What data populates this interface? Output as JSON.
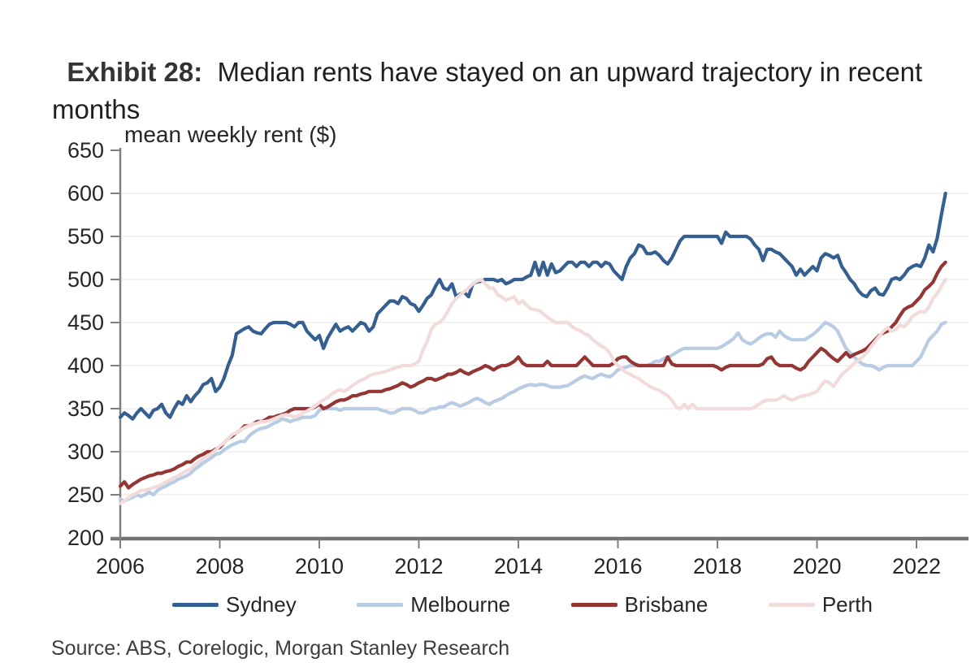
{
  "title": {
    "exhibit": "Exhibit 28:",
    "rest": "  Median rents have stayed on an upward trajectory in recent months"
  },
  "source": "Source: ABS, Corelogic, Morgan Stanley Research",
  "colors": {
    "axis_line": "#808080",
    "x_axis_line": "#737373",
    "gridline": "#eeeeee",
    "tick_text": "#262626",
    "title_text": "#1f1f1f"
  },
  "chart_data": {
    "type": "line",
    "title": "mean weekly rent ($)",
    "ylabel": "mean weekly rent ($)",
    "xlabel": "",
    "ylim": [
      200,
      650
    ],
    "ytick_step": 50,
    "yticks": [
      200,
      250,
      300,
      350,
      400,
      450,
      500,
      550,
      600,
      650
    ],
    "gridline_values": [
      250,
      300,
      350,
      400,
      450,
      500,
      550,
      600
    ],
    "xlim": [
      2006,
      2022.95
    ],
    "xticks": [
      2006,
      2008,
      2010,
      2012,
      2014,
      2016,
      2018,
      2020,
      2022
    ],
    "x_start": 2006.0,
    "x_step_years": 0.0833333,
    "grid": "horizontal",
    "legend_position": "bottom",
    "series": [
      {
        "name": "Sydney",
        "color": "#365F91",
        "values": [
          340,
          345,
          342,
          338,
          345,
          350,
          345,
          340,
          348,
          350,
          355,
          345,
          340,
          350,
          358,
          355,
          365,
          358,
          365,
          370,
          378,
          380,
          385,
          370,
          375,
          385,
          400,
          412,
          437,
          440,
          443,
          445,
          440,
          438,
          437,
          443,
          448,
          450,
          450,
          450,
          450,
          448,
          445,
          450,
          450,
          440,
          435,
          430,
          435,
          420,
          432,
          440,
          448,
          440,
          443,
          445,
          440,
          445,
          450,
          448,
          440,
          445,
          460,
          465,
          470,
          475,
          475,
          472,
          480,
          478,
          472,
          470,
          463,
          470,
          478,
          482,
          492,
          500,
          490,
          488,
          495,
          480,
          483,
          485,
          480,
          495,
          497,
          498,
          500,
          500,
          500,
          498,
          500,
          495,
          497,
          500,
          500,
          500,
          503,
          505,
          520,
          505,
          520,
          505,
          518,
          508,
          510,
          515,
          520,
          520,
          515,
          520,
          520,
          515,
          520,
          520,
          515,
          520,
          518,
          510,
          505,
          500,
          515,
          525,
          530,
          540,
          538,
          530,
          530,
          532,
          528,
          522,
          518,
          525,
          535,
          545,
          550,
          550,
          550,
          550,
          550,
          550,
          550,
          550,
          550,
          542,
          555,
          550,
          550,
          550,
          550,
          550,
          547,
          540,
          535,
          522,
          535,
          535,
          532,
          530,
          525,
          520,
          515,
          505,
          512,
          505,
          510,
          515,
          510,
          525,
          530,
          528,
          525,
          528,
          515,
          508,
          500,
          495,
          487,
          482,
          480,
          487,
          490,
          483,
          482,
          490,
          500,
          502,
          500,
          505,
          512,
          515,
          517,
          515,
          525,
          540,
          532,
          548,
          575,
          600
        ]
      },
      {
        "name": "Melbourne",
        "color": "#B8CCE4",
        "values": [
          245,
          243,
          245,
          247,
          250,
          248,
          250,
          253,
          250,
          255,
          258,
          260,
          263,
          265,
          268,
          270,
          272,
          275,
          280,
          283,
          287,
          290,
          293,
          297,
          298,
          302,
          305,
          308,
          310,
          312,
          312,
          318,
          322,
          325,
          327,
          328,
          330,
          333,
          335,
          338,
          337,
          335,
          337,
          338,
          340,
          340,
          340,
          342,
          348,
          350,
          350,
          350,
          350,
          348,
          350,
          350,
          350,
          350,
          350,
          350,
          350,
          350,
          350,
          348,
          347,
          345,
          345,
          348,
          350,
          350,
          350,
          348,
          345,
          345,
          347,
          350,
          350,
          352,
          352,
          355,
          357,
          355,
          353,
          355,
          357,
          360,
          362,
          360,
          357,
          355,
          358,
          360,
          362,
          365,
          368,
          370,
          373,
          375,
          377,
          378,
          377,
          378,
          378,
          377,
          375,
          375,
          375,
          376,
          377,
          380,
          383,
          386,
          388,
          386,
          385,
          388,
          390,
          388,
          387,
          390,
          395,
          397,
          398,
          400,
          400,
          400,
          400,
          400,
          402,
          405,
          405,
          408,
          410,
          412,
          415,
          418,
          420,
          420,
          420,
          420,
          420,
          420,
          420,
          420,
          420,
          422,
          425,
          428,
          432,
          438,
          430,
          427,
          425,
          428,
          432,
          435,
          437,
          437,
          433,
          440,
          435,
          432,
          430,
          430,
          430,
          430,
          433,
          436,
          440,
          445,
          450,
          448,
          445,
          440,
          430,
          420,
          415,
          410,
          405,
          402,
          400,
          400,
          398,
          395,
          398,
          400,
          400,
          400,
          400,
          400,
          400,
          400,
          405,
          410,
          420,
          430,
          435,
          440,
          448,
          450
        ]
      },
      {
        "name": "Brisbane",
        "color": "#943634",
        "values": [
          260,
          265,
          258,
          262,
          265,
          268,
          270,
          272,
          273,
          275,
          275,
          277,
          278,
          280,
          283,
          285,
          288,
          288,
          292,
          295,
          297,
          300,
          300,
          303,
          305,
          310,
          315,
          318,
          322,
          325,
          330,
          330,
          332,
          335,
          335,
          337,
          340,
          340,
          342,
          343,
          345,
          348,
          350,
          350,
          350,
          350,
          350,
          352,
          355,
          350,
          352,
          355,
          358,
          360,
          360,
          362,
          365,
          365,
          367,
          368,
          370,
          370,
          370,
          370,
          372,
          373,
          375,
          377,
          380,
          378,
          375,
          377,
          380,
          382,
          385,
          385,
          383,
          385,
          387,
          390,
          390,
          392,
          395,
          392,
          390,
          393,
          395,
          397,
          400,
          398,
          395,
          398,
          400,
          400,
          402,
          405,
          410,
          403,
          400,
          400,
          400,
          400,
          400,
          405,
          400,
          400,
          400,
          400,
          400,
          400,
          400,
          405,
          410,
          405,
          400,
          400,
          400,
          400,
          400,
          403,
          408,
          410,
          410,
          405,
          402,
          400,
          400,
          400,
          400,
          400,
          400,
          400,
          410,
          402,
          400,
          400,
          400,
          400,
          400,
          400,
          400,
          400,
          400,
          400,
          398,
          395,
          398,
          400,
          400,
          400,
          400,
          400,
          400,
          400,
          400,
          402,
          408,
          410,
          403,
          400,
          400,
          400,
          400,
          397,
          395,
          398,
          405,
          410,
          415,
          420,
          417,
          412,
          408,
          405,
          410,
          415,
          410,
          413,
          415,
          417,
          420,
          425,
          430,
          435,
          438,
          440,
          445,
          450,
          458,
          465,
          468,
          470,
          475,
          480,
          488,
          492,
          497,
          507,
          515,
          520
        ]
      },
      {
        "name": "Perth",
        "color": "#F2DCDB",
        "values": [
          240,
          243,
          247,
          250,
          252,
          255,
          255,
          257,
          258,
          260,
          262,
          265,
          267,
          270,
          272,
          275,
          278,
          280,
          285,
          288,
          292,
          295,
          298,
          302,
          307,
          310,
          315,
          320,
          322,
          325,
          328,
          330,
          332,
          333,
          335,
          335,
          336,
          338,
          340,
          342,
          343,
          342,
          340,
          342,
          345,
          347,
          350,
          353,
          357,
          360,
          363,
          367,
          370,
          372,
          370,
          373,
          377,
          380,
          383,
          385,
          388,
          390,
          391,
          392,
          393,
          395,
          397,
          398,
          400,
          400,
          400,
          402,
          405,
          418,
          428,
          442,
          448,
          450,
          455,
          463,
          472,
          478,
          482,
          486,
          490,
          495,
          498,
          500,
          495,
          490,
          490,
          482,
          480,
          476,
          478,
          480,
          472,
          475,
          470,
          466,
          465,
          464,
          460,
          456,
          453,
          450,
          450,
          450,
          450,
          445,
          442,
          440,
          437,
          435,
          430,
          426,
          423,
          420,
          415,
          405,
          400,
          396,
          392,
          390,
          387,
          385,
          381,
          378,
          375,
          373,
          371,
          368,
          365,
          360,
          352,
          350,
          355,
          350,
          355,
          350,
          350,
          350,
          350,
          350,
          350,
          350,
          350,
          350,
          350,
          350,
          350,
          350,
          350,
          352,
          355,
          358,
          360,
          360,
          360,
          362,
          365,
          362,
          360,
          362,
          364,
          365,
          366,
          368,
          370,
          377,
          382,
          380,
          376,
          383,
          390,
          394,
          398,
          403,
          406,
          410,
          415,
          422,
          428,
          434,
          440,
          444,
          440,
          442,
          447,
          445,
          450,
          457,
          460,
          463,
          462,
          468,
          478,
          484,
          492,
          500
        ]
      }
    ]
  }
}
